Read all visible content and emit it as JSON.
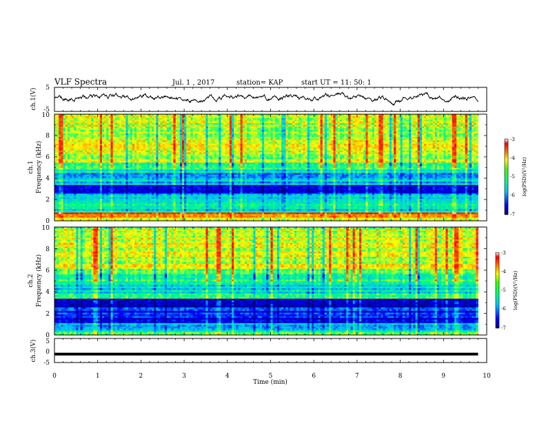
{
  "header": {
    "title": "VLF Spectra",
    "date": "Jul.  1  , 2017",
    "station": "station= KAP",
    "start_time": "start  UT  =   11: 50: 1"
  },
  "colors": {
    "background": "#ffffff",
    "trace": "#000000"
  },
  "colormap": [
    "#000080",
    "#0000ff",
    "#00bfff",
    "#00ff80",
    "#ffff00",
    "#ff8000",
    "#ff0000",
    "#ffffff"
  ],
  "chart_data": [
    {
      "type": "line",
      "name": "ch1-trace",
      "ylabel": "ch.1(V)",
      "xlim": [
        0,
        10
      ],
      "ylim": [
        -5,
        5
      ],
      "yticks": [
        "5",
        "-5"
      ],
      "data_extent": [
        0,
        9.8
      ],
      "mean": 0.5,
      "amplitude_range": [
        -3,
        3
      ]
    },
    {
      "type": "heatmap",
      "name": "ch1-spectrogram",
      "ylabel": "ch.1\nFrequency  (kHz)",
      "ylabel_lines": [
        "ch.1",
        "Frequency  (kHz)"
      ],
      "xlim": [
        0,
        10
      ],
      "ylim": [
        0,
        10
      ],
      "yticks": [
        "0",
        "2",
        "4",
        "6",
        "8",
        "10"
      ],
      "data_extent": [
        0,
        9.8
      ],
      "colorbar": {
        "label": "log(PSD)(V²/Hz)",
        "range": [
          -7,
          -3
        ],
        "ticks": [
          "-3",
          "-4",
          "-5",
          "-6",
          "-7"
        ]
      },
      "bands": [
        {
          "range": [
            0,
            0.4
          ],
          "level": 0.6
        },
        {
          "range": [
            0.4,
            0.8
          ],
          "level": 0.75
        },
        {
          "range": [
            0.8,
            1.2
          ],
          "level": 0.35
        },
        {
          "range": [
            1.2,
            2.0
          ],
          "level": 0.4
        },
        {
          "range": [
            2.0,
            2.6
          ],
          "level": 0.35
        },
        {
          "range": [
            2.6,
            3.4
          ],
          "level": 0.1
        },
        {
          "range": [
            3.4,
            4.5
          ],
          "level": 0.3
        },
        {
          "range": [
            4.5,
            5.5
          ],
          "level": 0.4
        },
        {
          "range": [
            5.5,
            10
          ],
          "level": 0.55
        }
      ]
    },
    {
      "type": "heatmap",
      "name": "ch2-spectrogram",
      "ylabel": "ch.2\nFrequency  (kHz)",
      "ylabel_lines": [
        "ch.2",
        "Frequency  (kHz)"
      ],
      "xlim": [
        0,
        10
      ],
      "ylim": [
        0,
        10
      ],
      "yticks": [
        "0",
        "2",
        "4",
        "6",
        "8",
        "10"
      ],
      "data_extent": [
        0,
        9.8
      ],
      "colorbar": {
        "label": "log(PSD)(V²/Hz)",
        "range": [
          -7,
          -3
        ],
        "ticks": [
          "-3",
          "-4",
          "-5",
          "-6",
          "-7"
        ]
      },
      "bands": [
        {
          "range": [
            0,
            0.4
          ],
          "level": 0.45
        },
        {
          "range": [
            0.4,
            1.2
          ],
          "level": 0.3
        },
        {
          "range": [
            1.2,
            2.6
          ],
          "level": 0.15
        },
        {
          "range": [
            2.6,
            3.4
          ],
          "level": 0.08
        },
        {
          "range": [
            3.4,
            3.8
          ],
          "level": 0.4
        },
        {
          "range": [
            3.8,
            4.8
          ],
          "level": 0.35
        },
        {
          "range": [
            4.8,
            6.2
          ],
          "level": 0.45
        },
        {
          "range": [
            6.2,
            10
          ],
          "level": 0.55
        }
      ]
    },
    {
      "type": "line",
      "name": "ch3-trace",
      "ylabel": "ch.3(V)",
      "xlabel": "Time  (min)",
      "xlim": [
        0,
        10
      ],
      "ylim": [
        -5,
        5
      ],
      "yticks": [
        "5",
        "0",
        "-5"
      ],
      "xticks": [
        "0",
        "1",
        "2",
        "3",
        "4",
        "5",
        "6",
        "7",
        "8",
        "9",
        "10"
      ],
      "data_extent": [
        0,
        9.8
      ],
      "constant_value": -1.5
    }
  ]
}
